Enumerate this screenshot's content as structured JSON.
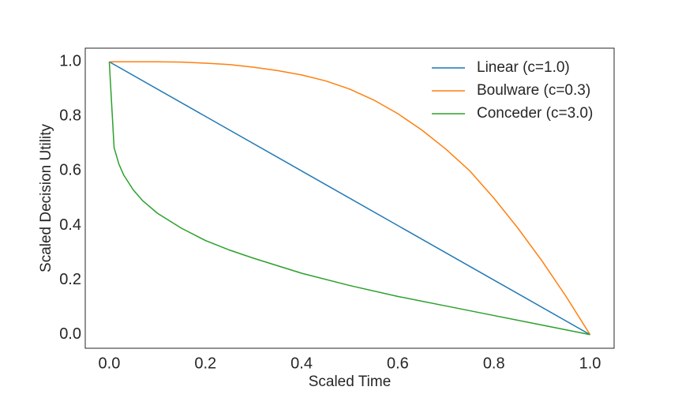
{
  "chart_data": {
    "type": "line",
    "title": "",
    "xlabel": "Scaled Time",
    "ylabel": "Scaled Decision Utility",
    "xlim": [
      -0.05,
      1.05
    ],
    "ylim": [
      -0.05,
      1.05
    ],
    "grid": false,
    "legend_position": "top-right",
    "xticks": [
      0.0,
      0.2,
      0.4,
      0.6,
      0.8,
      1.0
    ],
    "xtick_labels": [
      "0.0",
      "0.2",
      "0.4",
      "0.6",
      "0.8",
      "1.0"
    ],
    "yticks": [
      0.0,
      0.2,
      0.4,
      0.6,
      0.8,
      1.0
    ],
    "ytick_labels": [
      "0.0",
      "0.2",
      "0.4",
      "0.6",
      "0.8",
      "1.0"
    ],
    "series": [
      {
        "name": "Linear (c=1.0)",
        "color": "#1f77b4",
        "x": [
          0.0,
          1.0
        ],
        "y": [
          1.0,
          0.0
        ]
      },
      {
        "name": "Boulware (c=0.3)",
        "color": "#ff7f0e",
        "x": [
          0.0,
          0.05,
          0.1,
          0.15,
          0.2,
          0.25,
          0.3,
          0.35,
          0.4,
          0.45,
          0.5,
          0.55,
          0.6,
          0.65,
          0.7,
          0.75,
          0.8,
          0.85,
          0.9,
          0.95,
          1.0
        ],
        "y": [
          1.0,
          1.0,
          1.0,
          0.999,
          0.995,
          0.99,
          0.98,
          0.968,
          0.952,
          0.93,
          0.9,
          0.86,
          0.81,
          0.75,
          0.68,
          0.6,
          0.5,
          0.39,
          0.27,
          0.14,
          0.0
        ]
      },
      {
        "name": "Conceder (c=3.0)",
        "color": "#2ca02c",
        "x": [
          0.0,
          0.01,
          0.02,
          0.03,
          0.05,
          0.07,
          0.1,
          0.15,
          0.2,
          0.25,
          0.3,
          0.4,
          0.5,
          0.6,
          0.7,
          0.8,
          0.9,
          1.0
        ],
        "y": [
          1.0,
          0.685,
          0.625,
          0.585,
          0.53,
          0.49,
          0.445,
          0.39,
          0.345,
          0.31,
          0.28,
          0.225,
          0.18,
          0.14,
          0.105,
          0.07,
          0.035,
          0.0
        ]
      }
    ]
  }
}
